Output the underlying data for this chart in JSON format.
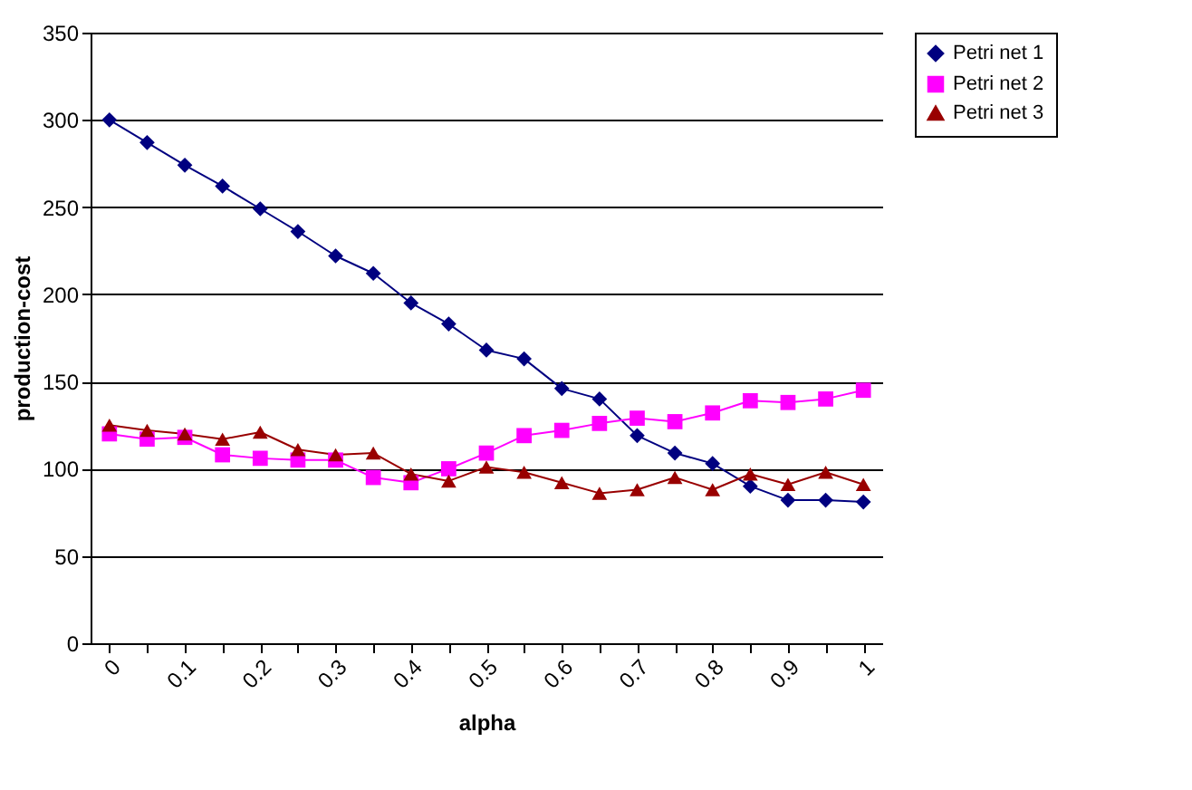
{
  "chart_data": {
    "type": "line",
    "xlabel": "alpha",
    "ylabel": "production-cost",
    "categories": [
      "0",
      null,
      "0.1",
      null,
      "0.2",
      null,
      "0.3",
      null,
      "0.4",
      null,
      "0.5",
      null,
      "0.6",
      null,
      "0.7",
      null,
      "0.8",
      null,
      "0.9",
      null,
      "1"
    ],
    "series": [
      {
        "name": "Petri net 1",
        "color": "#000080",
        "marker": "diamond",
        "values": [
          300,
          287,
          274,
          262,
          249,
          236,
          222,
          212,
          195,
          183,
          168,
          163,
          146,
          140,
          119,
          109,
          103,
          90,
          82,
          82,
          81
        ]
      },
      {
        "name": "Petri net 2",
        "color": "#ff00ff",
        "marker": "square",
        "values": [
          120,
          117,
          118,
          108,
          106,
          105,
          105,
          95,
          92,
          100,
          109,
          119,
          122,
          126,
          129,
          127,
          132,
          139,
          138,
          140,
          145
        ]
      },
      {
        "name": "Petri net 3",
        "color": "#990000",
        "marker": "triangle",
        "values": [
          125,
          122,
          120,
          117,
          121,
          111,
          108,
          109,
          97,
          93,
          101,
          98,
          92,
          86,
          88,
          95,
          88,
          97,
          91,
          98,
          91
        ]
      }
    ],
    "ylim": [
      0,
      350
    ],
    "yticks": [
      0,
      50,
      100,
      150,
      200,
      250,
      300,
      350
    ],
    "grid": "y",
    "legend": "right",
    "line_style": "solid"
  }
}
